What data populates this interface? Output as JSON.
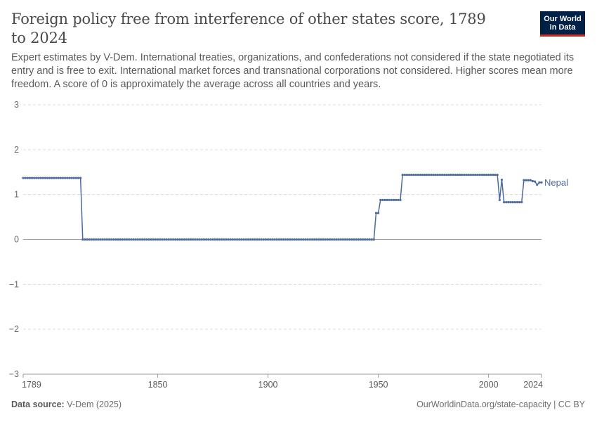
{
  "header": {
    "title": "Foreign policy free from interference of other states score, 1789 to 2024",
    "subtitle": "Expert estimates by V-Dem. International treaties, organizations, and confederations not considered if the state negotiated its entry and is free to exit. International market forces and transnational corporations not considered. Higher scores mean more freedom. A score of 0 is approximately the average across all countries and years."
  },
  "logo": {
    "line1": "Our World",
    "line2": "in Data"
  },
  "footer": {
    "source_label": "Data source:",
    "source_value": "V-Dem (2025)",
    "url": "OurWorldinData.org/state-capacity | CC BY"
  },
  "colors": {
    "series": "#4c6a9c",
    "grid": "#dddddd",
    "zero_line": "#a1a1a1",
    "logo_bg": "#002147",
    "logo_accent": "#ce261e"
  },
  "chart_data": {
    "type": "line",
    "title": "Foreign policy free from interference of other states score, 1789 to 2024",
    "xlabel": "",
    "ylabel": "",
    "xlim": [
      1789,
      2024
    ],
    "ylim": [
      -3,
      3
    ],
    "x_ticks": [
      1789,
      1850,
      1900,
      1950,
      2000,
      2024
    ],
    "y_ticks": [
      -3,
      -2,
      -1,
      0,
      1,
      2,
      3
    ],
    "grid": true,
    "legend": "inline-right",
    "series": [
      {
        "name": "Nepal",
        "color": "#4c6a9c",
        "segments": [
          {
            "from": 1789,
            "to": 1815,
            "value": 1.37
          },
          {
            "from": 1816,
            "to": 1948,
            "value": 0.0
          },
          {
            "from": 1949,
            "to": 1950,
            "value": 0.59
          },
          {
            "from": 1951,
            "to": 1960,
            "value": 0.88
          },
          {
            "from": 1961,
            "to": 2004,
            "value": 1.44
          },
          {
            "year": 2005,
            "value": 0.88
          },
          {
            "year": 2006,
            "value": 1.33
          },
          {
            "from": 2007,
            "to": 2015,
            "value": 0.83
          },
          {
            "from": 2016,
            "to": 2019,
            "value": 1.32
          },
          {
            "year": 2020,
            "value": 1.3
          },
          {
            "year": 2021,
            "value": 1.29
          },
          {
            "year": 2022,
            "value": 1.22
          },
          {
            "year": 2023,
            "value": 1.27
          },
          {
            "year": 2024,
            "value": 1.27
          }
        ]
      }
    ]
  }
}
